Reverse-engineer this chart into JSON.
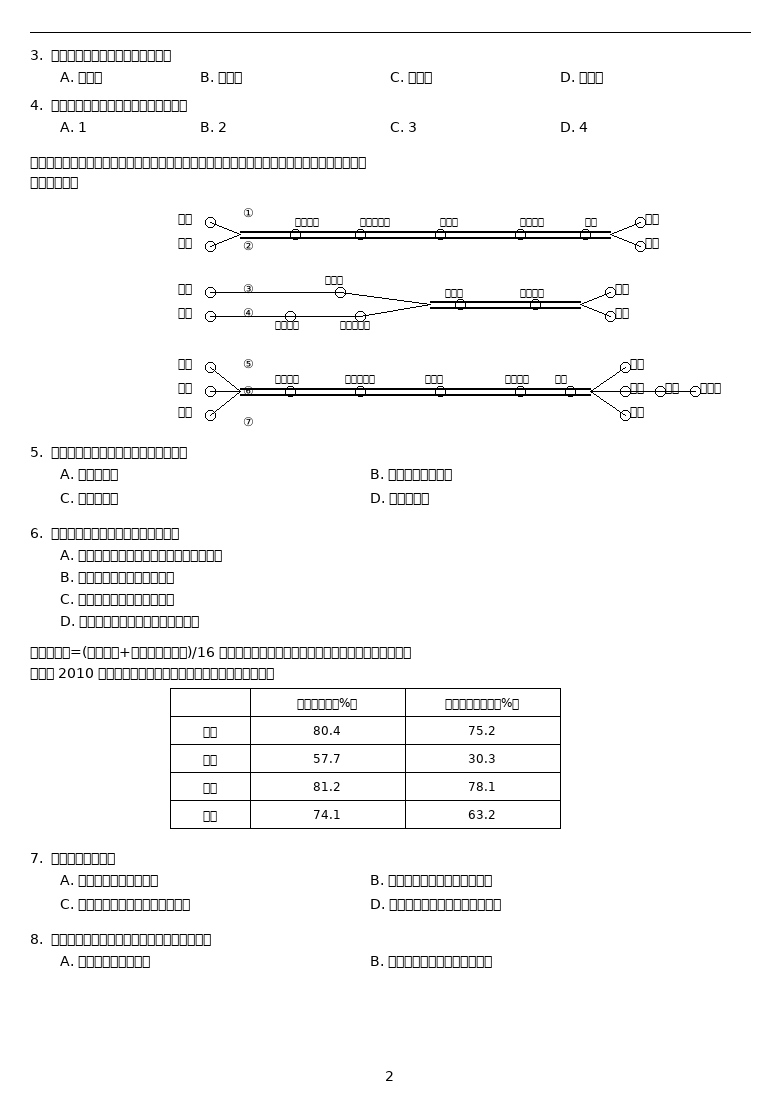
{
  "bg_color": "#ffffff",
  "page_number": "2"
}
